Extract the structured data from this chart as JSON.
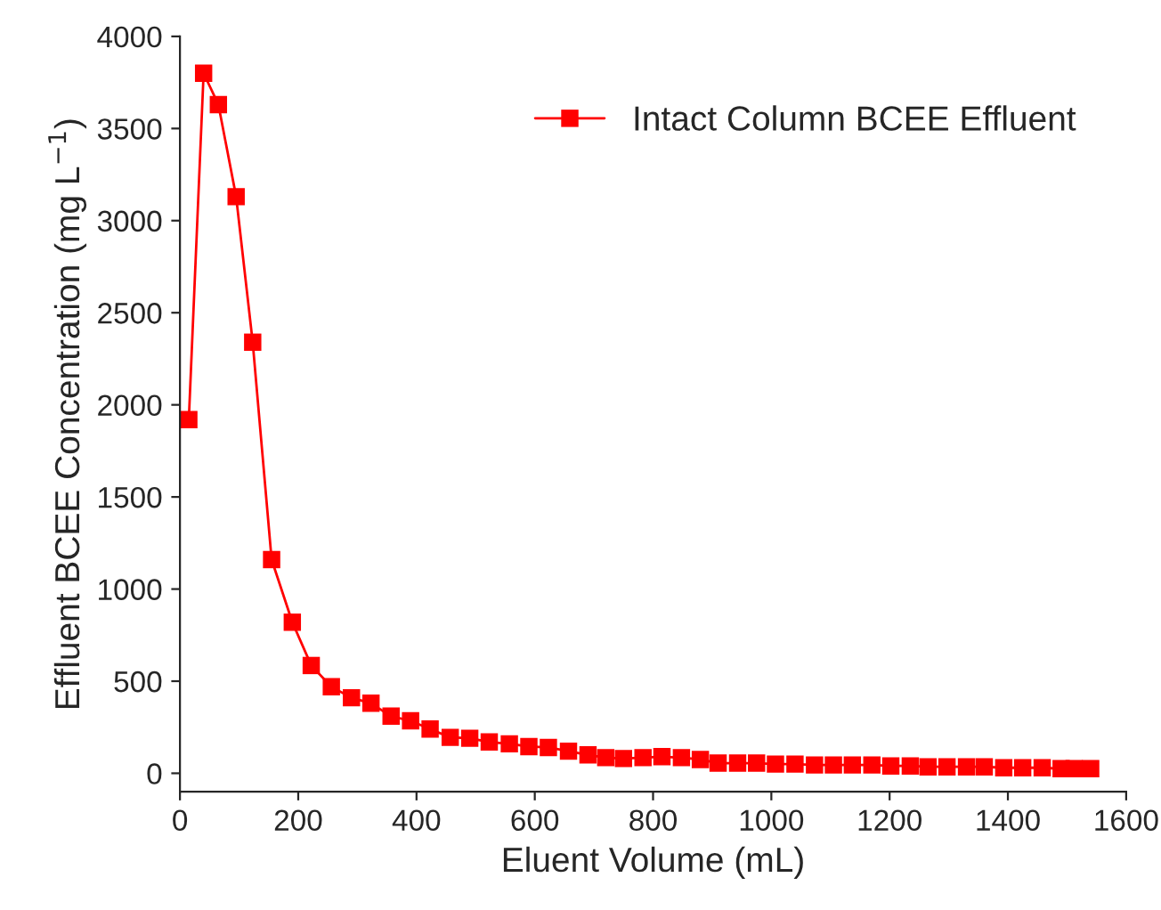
{
  "chart_data": {
    "type": "line",
    "xlabel": "Eluent Volume (mL)",
    "ylabel": "Effluent BCEE Concentration (mg L$^{−1}$)",
    "x": [
      15,
      40,
      65,
      95,
      123,
      155,
      190,
      222,
      256,
      290,
      323,
      357,
      390,
      423,
      457,
      490,
      523,
      557,
      590,
      623,
      657,
      690,
      720,
      750,
      783,
      815,
      848,
      880,
      910,
      943,
      975,
      1007,
      1040,
      1073,
      1105,
      1137,
      1170,
      1202,
      1235,
      1265,
      1297,
      1330,
      1360,
      1393,
      1425,
      1458,
      1490,
      1512,
      1540
    ],
    "series": [
      {
        "name": "Intact Column BCEE Effluent",
        "color": "#ff0000",
        "values": [
          1920,
          3800,
          3630,
          3130,
          2340,
          1160,
          820,
          585,
          470,
          410,
          380,
          310,
          285,
          240,
          195,
          190,
          170,
          160,
          145,
          140,
          120,
          100,
          85,
          80,
          85,
          90,
          85,
          75,
          55,
          55,
          55,
          50,
          50,
          45,
          45,
          45,
          45,
          40,
          40,
          35,
          35,
          35,
          35,
          30,
          30,
          30,
          25,
          25,
          25
        ]
      }
    ],
    "xlim": [
      0,
      1600
    ],
    "xticks": [
      0,
      200,
      400,
      600,
      800,
      1000,
      1200,
      1400,
      1600
    ],
    "ylim": [
      -100,
      4000
    ],
    "yticks": [
      0,
      500,
      1000,
      1500,
      2000,
      2500,
      3000,
      3500,
      4000
    ],
    "marker": "square",
    "line_style": "solid",
    "grid": false,
    "legend": "top right"
  }
}
